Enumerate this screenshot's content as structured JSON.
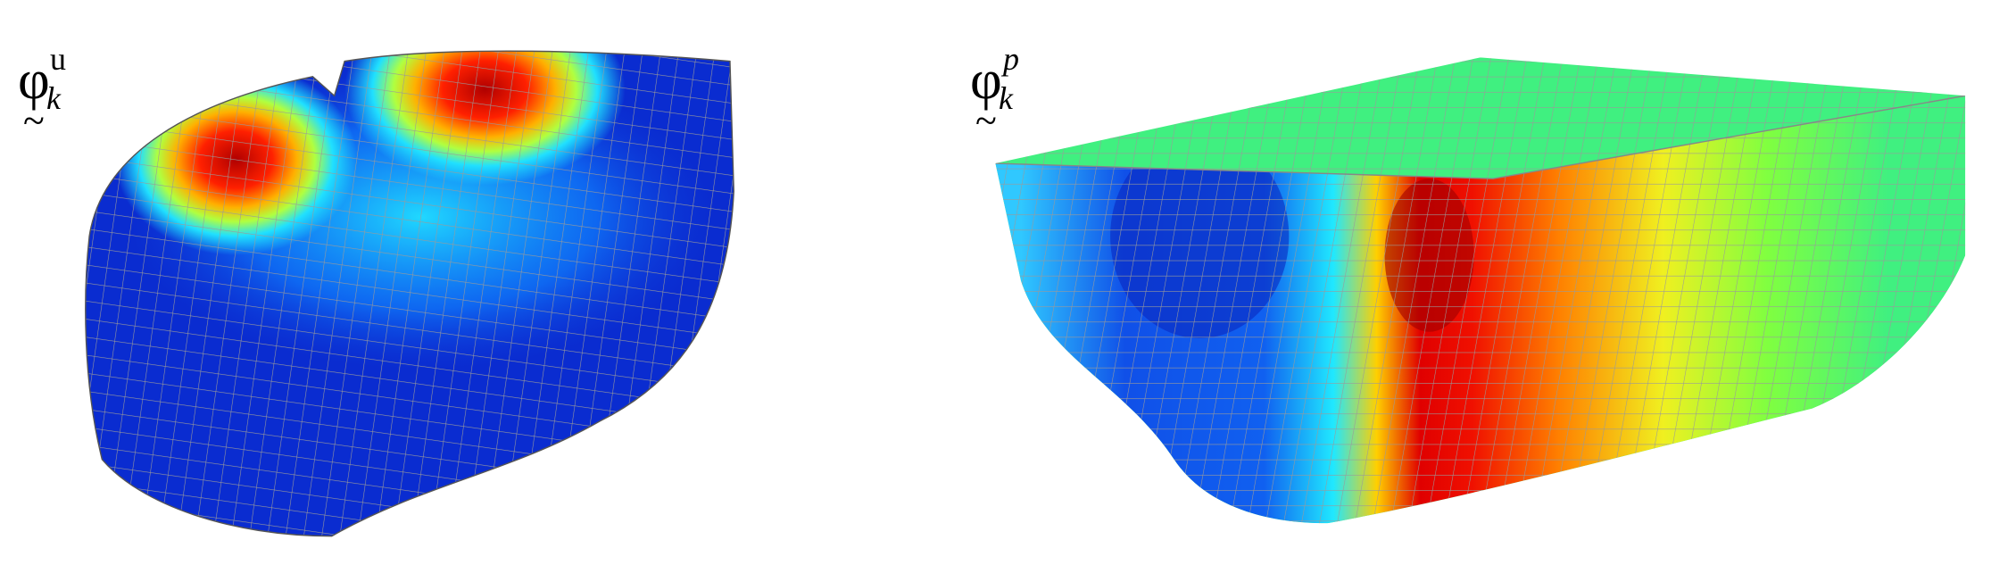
{
  "panels": [
    {
      "symbol": "φ",
      "subscript": "k",
      "superscript": "u",
      "underscript": "~"
    },
    {
      "symbol": "φ",
      "subscript": "k",
      "superscript": "p",
      "underscript": "~"
    }
  ]
}
